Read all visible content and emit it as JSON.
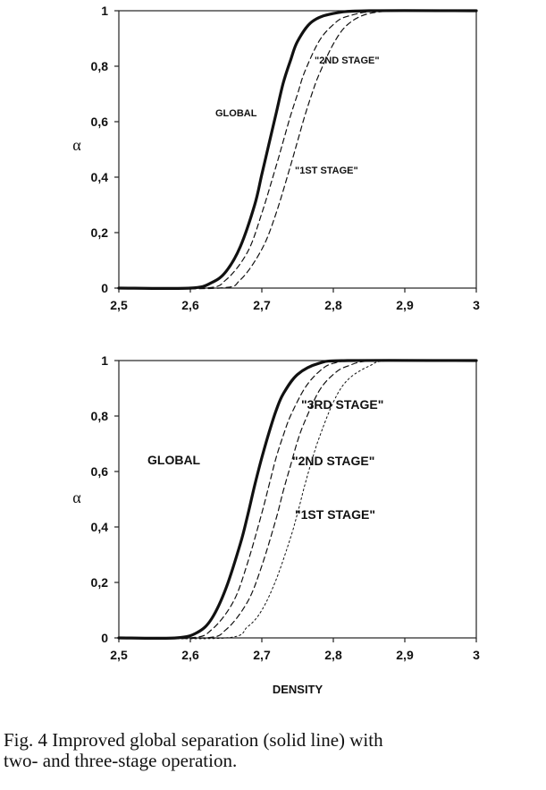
{
  "chart_data": [
    {
      "type": "line",
      "title": "",
      "xlabel": "",
      "ylabel": "α",
      "xlim": [
        2.5,
        3.0
      ],
      "ylim": [
        0,
        1
      ],
      "x_ticks": [
        "2,5",
        "2,6",
        "2,7",
        "2,8",
        "2,9",
        "3"
      ],
      "y_ticks": [
        "0",
        "0,2",
        "0,4",
        "0,6",
        "0,8",
        "1"
      ],
      "grid": false,
      "annotations": [
        "GLOBAL",
        "\"2ND STAGE\"",
        "\"1ST STAGE\""
      ],
      "series": [
        {
          "style": "solid",
          "x": [
            2.5,
            2.6,
            2.63,
            2.65,
            2.67,
            2.69,
            2.7,
            2.71,
            2.72,
            2.73,
            2.74,
            2.75,
            2.77,
            2.8,
            2.85,
            3.0
          ],
          "y": [
            0.0,
            0.0,
            0.02,
            0.06,
            0.15,
            0.3,
            0.41,
            0.52,
            0.63,
            0.74,
            0.82,
            0.89,
            0.96,
            0.99,
            1.0,
            1.0
          ]
        },
        {
          "style": "dashed",
          "x": [
            2.5,
            2.62,
            2.65,
            2.68,
            2.7,
            2.72,
            2.73,
            2.74,
            2.75,
            2.76,
            2.78,
            2.8,
            2.82,
            2.87,
            3.0
          ],
          "y": [
            0.0,
            0.0,
            0.03,
            0.13,
            0.27,
            0.44,
            0.53,
            0.62,
            0.7,
            0.78,
            0.89,
            0.95,
            0.98,
            1.0,
            1.0
          ]
        },
        {
          "style": "dashed",
          "x": [
            2.5,
            2.64,
            2.67,
            2.7,
            2.72,
            2.74,
            2.75,
            2.76,
            2.77,
            2.78,
            2.8,
            2.82,
            2.85,
            2.9,
            3.0
          ],
          "y": [
            0.0,
            0.0,
            0.03,
            0.14,
            0.27,
            0.44,
            0.53,
            0.62,
            0.7,
            0.77,
            0.88,
            0.95,
            0.99,
            1.0,
            1.0
          ]
        }
      ]
    },
    {
      "type": "line",
      "title": "",
      "xlabel": "DENSITY",
      "ylabel": "α",
      "xlim": [
        2.5,
        3.0
      ],
      "ylim": [
        0,
        1
      ],
      "x_ticks": [
        "2,5",
        "2,6",
        "2,7",
        "2,8",
        "2,9",
        "3"
      ],
      "y_ticks": [
        "0",
        "0,2",
        "0,4",
        "0,6",
        "0,8",
        "1"
      ],
      "grid": false,
      "annotations": [
        "GLOBAL",
        "\"3RD STAGE\"",
        "\"2ND STAGE\"",
        "\"1ST STAGE\""
      ],
      "series": [
        {
          "style": "solid",
          "x": [
            2.5,
            2.58,
            2.61,
            2.63,
            2.65,
            2.67,
            2.68,
            2.69,
            2.7,
            2.71,
            2.72,
            2.73,
            2.75,
            2.78,
            2.82,
            3.0
          ],
          "y": [
            0.0,
            0.0,
            0.02,
            0.07,
            0.18,
            0.34,
            0.44,
            0.55,
            0.65,
            0.74,
            0.82,
            0.88,
            0.95,
            0.99,
            1.0,
            1.0
          ]
        },
        {
          "style": "dashed",
          "x": [
            2.5,
            2.6,
            2.63,
            2.66,
            2.68,
            2.7,
            2.71,
            2.72,
            2.73,
            2.74,
            2.76,
            2.78,
            2.8,
            2.84,
            3.0
          ],
          "y": [
            0.0,
            0.0,
            0.03,
            0.13,
            0.27,
            0.45,
            0.55,
            0.65,
            0.73,
            0.8,
            0.9,
            0.96,
            0.99,
            1.0,
            1.0
          ]
        },
        {
          "style": "dashed",
          "x": [
            2.5,
            2.62,
            2.65,
            2.68,
            2.7,
            2.72,
            2.73,
            2.74,
            2.75,
            2.76,
            2.78,
            2.8,
            2.82,
            2.86,
            3.0
          ],
          "y": [
            0.0,
            0.0,
            0.03,
            0.13,
            0.26,
            0.43,
            0.53,
            0.62,
            0.71,
            0.78,
            0.89,
            0.95,
            0.98,
            1.0,
            1.0
          ]
        },
        {
          "style": "dotted",
          "x": [
            2.5,
            2.65,
            2.68,
            2.7,
            2.72,
            2.74,
            2.75,
            2.76,
            2.77,
            2.78,
            2.8,
            2.82,
            2.85,
            2.88,
            3.0
          ],
          "y": [
            0.0,
            0.0,
            0.04,
            0.1,
            0.21,
            0.36,
            0.45,
            0.55,
            0.64,
            0.72,
            0.85,
            0.93,
            0.98,
            1.0,
            1.0
          ]
        }
      ]
    }
  ],
  "caption": {
    "line1": "Fig. 4 Improved global separation (solid line) with",
    "line2": "two- and three-stage operation."
  }
}
